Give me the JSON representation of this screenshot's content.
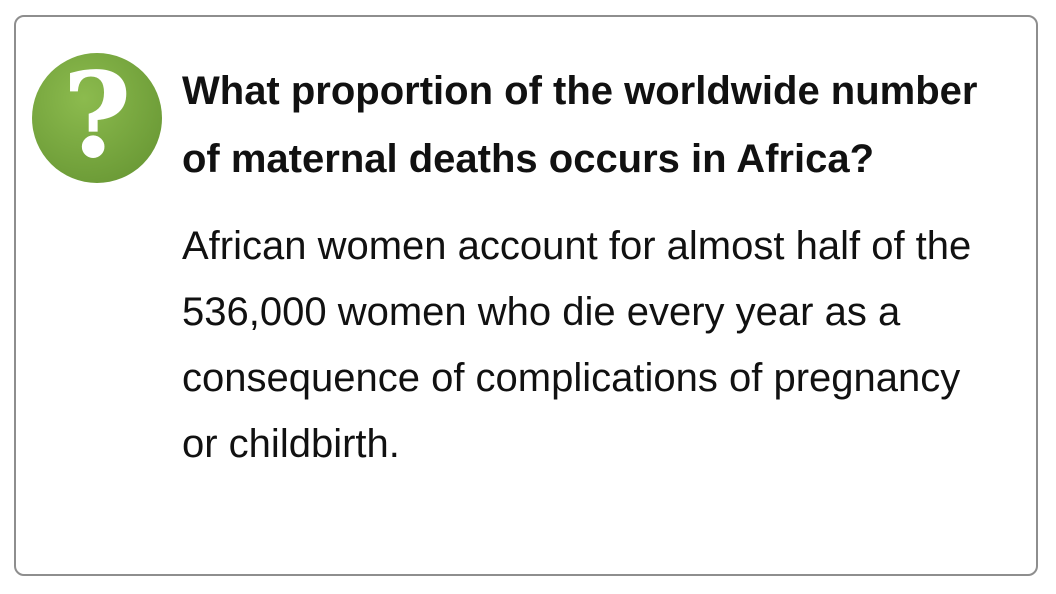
{
  "card": {
    "icon": "question-mark-icon",
    "accent_color": "#7aa640",
    "question": "What proportion of the worldwide number of maternal deaths occurs in Africa?",
    "answer": "African women account for almost half of the 536,000 women who die every year as a consequence of complications of pregnancy or childbirth."
  }
}
